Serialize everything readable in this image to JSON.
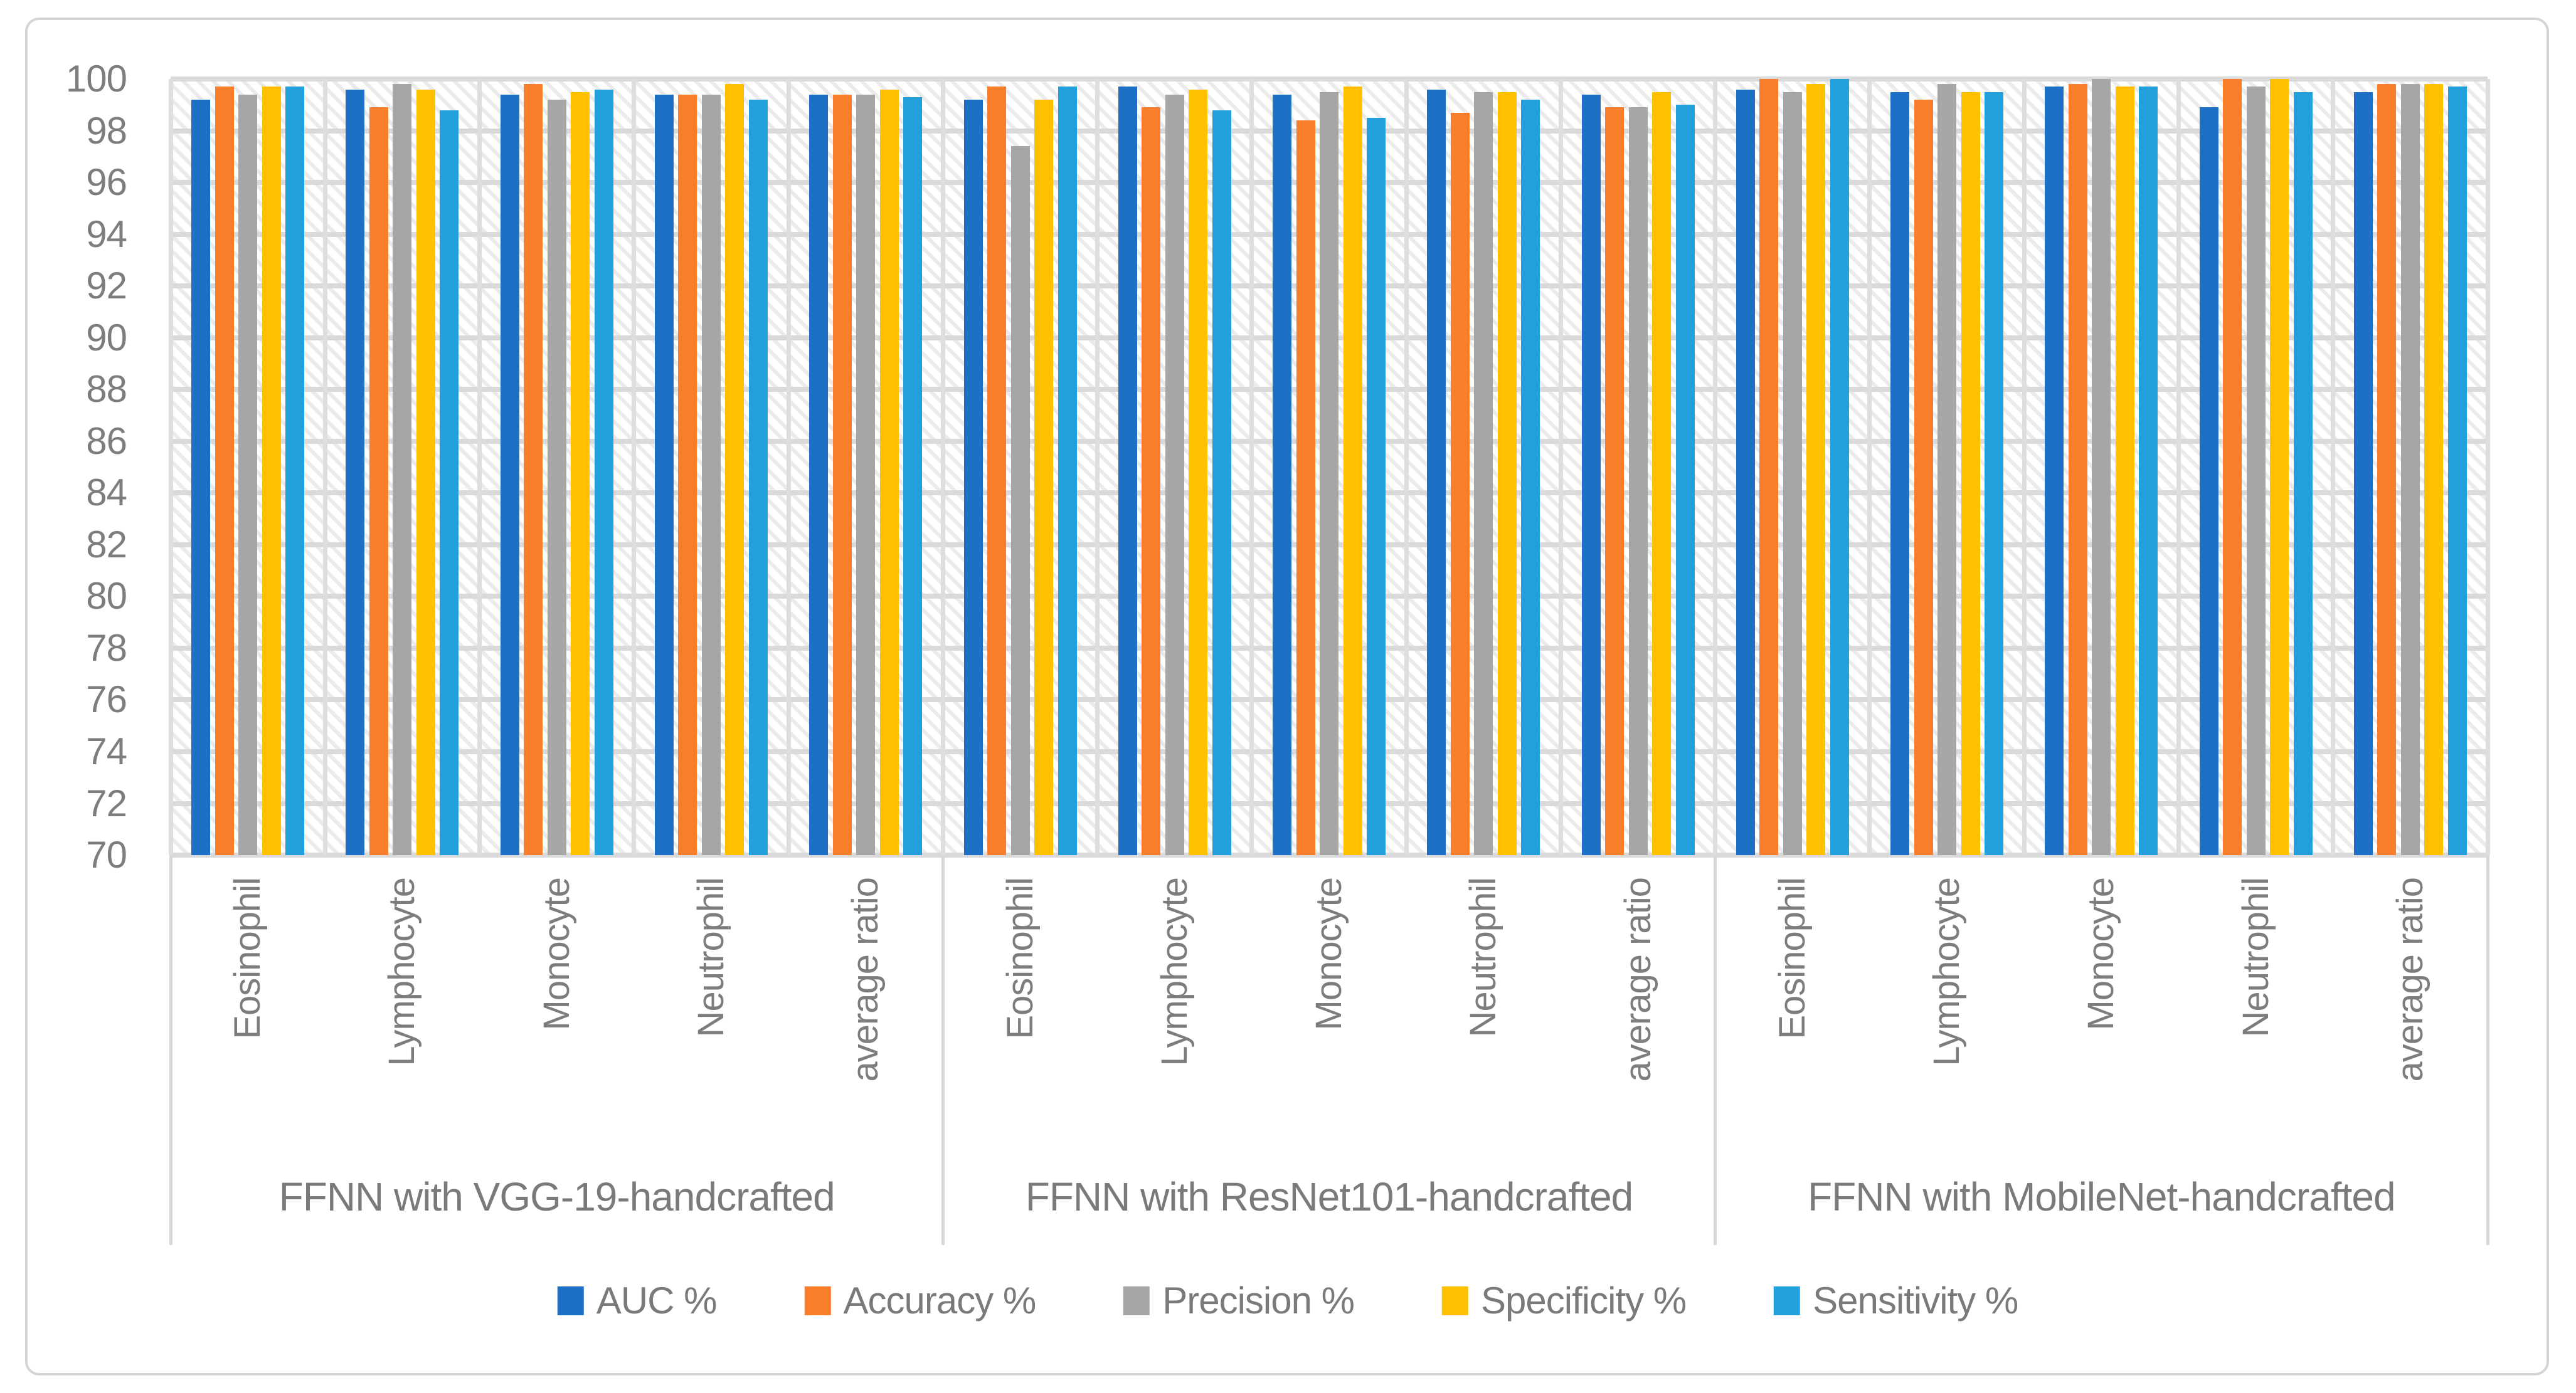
{
  "chart_data": {
    "type": "bar",
    "title": "",
    "xlabel": "",
    "ylabel": "",
    "ylim": [
      70,
      100
    ],
    "ytick_step": 2,
    "ytick_labels": [
      "100",
      "98",
      "96",
      "94",
      "92",
      "90",
      "88",
      "86",
      "84",
      "82",
      "80",
      "78",
      "76",
      "74",
      "72",
      "70"
    ],
    "grid": true,
    "legend_position": "bottom",
    "groups": [
      "FFNN with VGG-19-handcrafted",
      "FFNN with ResNet101-handcrafted",
      "FFNN with MobileNet-handcrafted"
    ],
    "categories_per_group": [
      "Eosinophil",
      "Lymphocyte",
      "Monocyte",
      "Neutrophil",
      "average ratio"
    ],
    "categories": [
      "Eosinophil",
      "Lymphocyte",
      "Monocyte",
      "Neutrophil",
      "average ratio",
      "Eosinophil",
      "Lymphocyte",
      "Monocyte",
      "Neutrophil",
      "average ratio",
      "Eosinophil",
      "Lymphocyte",
      "Monocyte",
      "Neutrophil",
      "average ratio"
    ],
    "series": [
      {
        "name": "AUC %",
        "color": "#1d70c6",
        "values": [
          99.2,
          99.6,
          99.4,
          99.4,
          99.4,
          99.2,
          99.7,
          99.4,
          99.6,
          99.4,
          99.6,
          99.5,
          99.7,
          98.9,
          99.5
        ]
      },
      {
        "name": "Accuracy %",
        "color": "#f87e2b",
        "values": [
          99.7,
          98.9,
          99.8,
          99.4,
          99.4,
          99.7,
          98.9,
          98.4,
          98.7,
          98.9,
          100.0,
          99.2,
          99.8,
          100.0,
          99.8
        ]
      },
      {
        "name": "Precision %",
        "color": "#a6a6a6",
        "values": [
          99.4,
          99.8,
          99.2,
          99.4,
          99.4,
          97.4,
          99.4,
          99.5,
          99.5,
          98.9,
          99.5,
          99.8,
          100.0,
          99.7,
          99.8
        ]
      },
      {
        "name": "Specificity %",
        "color": "#ffc000",
        "values": [
          99.7,
          99.6,
          99.5,
          99.8,
          99.6,
          99.2,
          99.6,
          99.7,
          99.5,
          99.5,
          99.8,
          99.5,
          99.7,
          100.0,
          99.8
        ]
      },
      {
        "name": "Sensitivity %",
        "color": "#22a0dc",
        "values": [
          99.7,
          98.8,
          99.6,
          99.2,
          99.3,
          99.7,
          98.8,
          98.5,
          99.2,
          99.0,
          100.0,
          99.5,
          99.7,
          99.5,
          99.7
        ]
      }
    ]
  },
  "colors": {
    "frame_border": "#d5d5d5",
    "gridline": "#dadada",
    "axis_text": "#7d7d7d",
    "plot_hatch": "#e3e3e3",
    "background": "#ffffff"
  }
}
